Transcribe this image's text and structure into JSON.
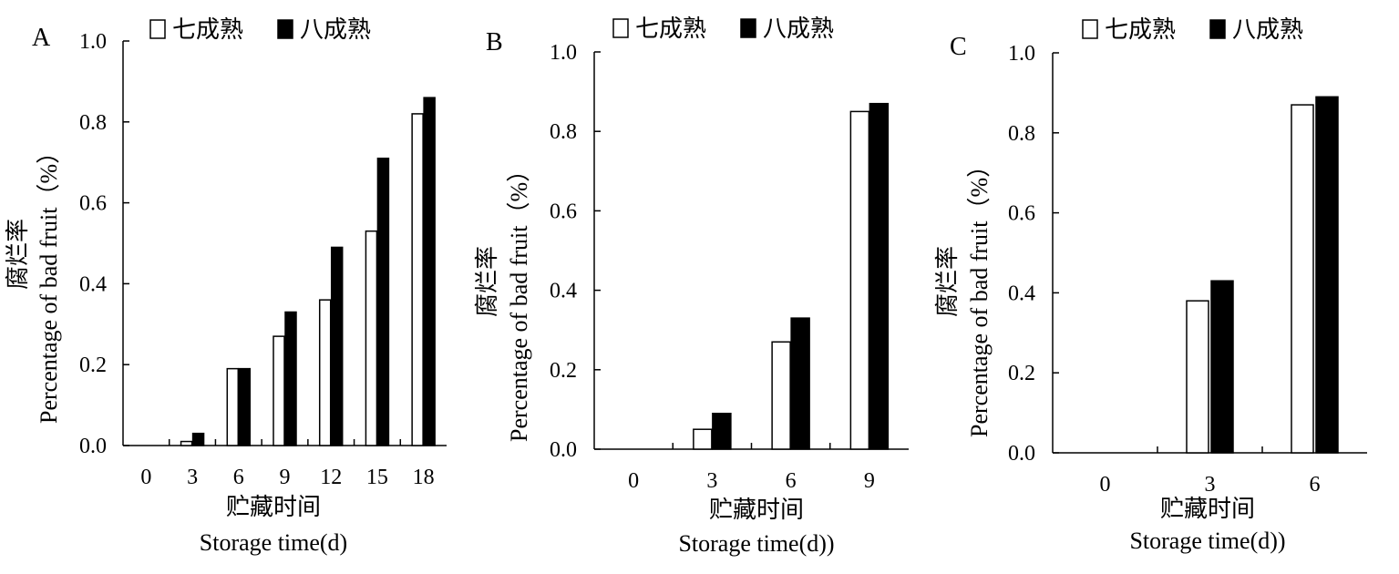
{
  "chart_data": [
    {
      "type": "bar",
      "panel_label": "A",
      "title": "",
      "ylabel": "Percentage of bad fruit（%）",
      "ylabel_cn": "腐烂率",
      "xlabel": "Storage time(d)",
      "xlabel_cn": "贮藏时间",
      "categories": [
        "0",
        "3",
        "6",
        "9",
        "12",
        "15",
        "18"
      ],
      "series": [
        {
          "name": "七成熟",
          "values": [
            0,
            0.01,
            0.19,
            0.27,
            0.36,
            0.53,
            0.82
          ],
          "color": "#ffffff"
        },
        {
          "name": "八成熟",
          "values": [
            0,
            0.03,
            0.19,
            0.33,
            0.49,
            0.71,
            0.86
          ],
          "color": "#000000"
        }
      ],
      "ylim": [
        0,
        1.0
      ],
      "yticks": [
        "0.0",
        "0.2",
        "0.4",
        "0.6",
        "0.8",
        "1.0"
      ],
      "grid": false,
      "legend_position": "top"
    },
    {
      "type": "bar",
      "panel_label": "B",
      "title": "",
      "ylabel": "Percentage of bad fruit（%）",
      "ylabel_cn": "腐烂率",
      "xlabel": "Storage time(d))",
      "xlabel_cn": "贮藏时间",
      "categories": [
        "0",
        "3",
        "6",
        "9"
      ],
      "series": [
        {
          "name": "七成熟",
          "values": [
            0,
            0.05,
            0.27,
            0.85
          ],
          "color": "#ffffff"
        },
        {
          "name": "八成熟",
          "values": [
            0,
            0.09,
            0.33,
            0.87
          ],
          "color": "#000000"
        }
      ],
      "ylim": [
        0,
        1.0
      ],
      "yticks": [
        "0.0",
        "0.2",
        "0.4",
        "0.6",
        "0.8",
        "1.0"
      ],
      "grid": false,
      "legend_position": "top"
    },
    {
      "type": "bar",
      "panel_label": "C",
      "title": "",
      "ylabel": "Percentage of bad fruit（%）",
      "ylabel_cn": "腐烂率",
      "xlabel": "Storage time(d))",
      "xlabel_cn": "贮藏时间",
      "categories": [
        "0",
        "3",
        "6"
      ],
      "series": [
        {
          "name": "七成熟",
          "values": [
            0,
            0.38,
            0.87
          ],
          "color": "#ffffff"
        },
        {
          "name": "八成熟",
          "values": [
            0,
            0.43,
            0.89
          ],
          "color": "#000000"
        }
      ],
      "ylim": [
        0,
        1.0
      ],
      "yticks": [
        "0.0",
        "0.2",
        "0.4",
        "0.6",
        "0.8",
        "1.0"
      ],
      "grid": false,
      "legend_position": "top"
    }
  ]
}
